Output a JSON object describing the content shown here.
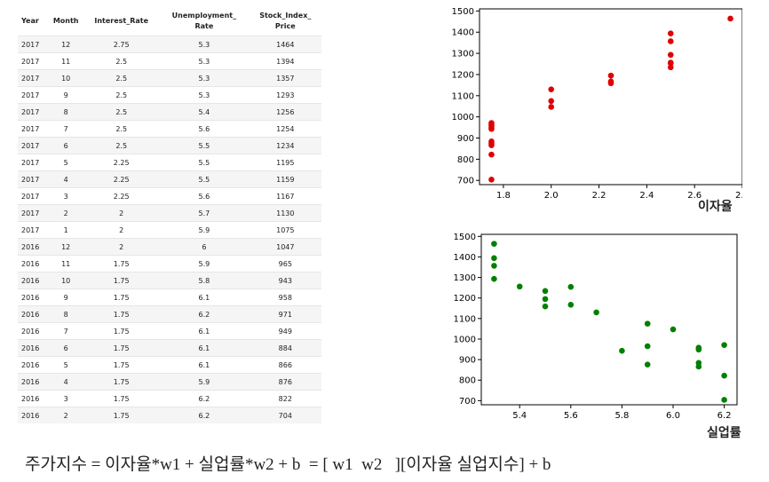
{
  "table": {
    "columns": [
      "Year",
      "Month",
      "Interest_Rate",
      "Unemployment_\nRate",
      "Stock_Index_\nPrice"
    ],
    "rows": [
      [
        "2017",
        "12",
        "2.75",
        "5.3",
        "1464"
      ],
      [
        "2017",
        "11",
        "2.5",
        "5.3",
        "1394"
      ],
      [
        "2017",
        "10",
        "2.5",
        "5.3",
        "1357"
      ],
      [
        "2017",
        "9",
        "2.5",
        "5.3",
        "1293"
      ],
      [
        "2017",
        "8",
        "2.5",
        "5.4",
        "1256"
      ],
      [
        "2017",
        "7",
        "2.5",
        "5.6",
        "1254"
      ],
      [
        "2017",
        "6",
        "2.5",
        "5.5",
        "1234"
      ],
      [
        "2017",
        "5",
        "2.25",
        "5.5",
        "1195"
      ],
      [
        "2017",
        "4",
        "2.25",
        "5.5",
        "1159"
      ],
      [
        "2017",
        "3",
        "2.25",
        "5.6",
        "1167"
      ],
      [
        "2017",
        "2",
        "2",
        "5.7",
        "1130"
      ],
      [
        "2017",
        "1",
        "2",
        "5.9",
        "1075"
      ],
      [
        "2016",
        "12",
        "2",
        "6",
        "1047"
      ],
      [
        "2016",
        "11",
        "1.75",
        "5.9",
        "965"
      ],
      [
        "2016",
        "10",
        "1.75",
        "5.8",
        "943"
      ],
      [
        "2016",
        "9",
        "1.75",
        "6.1",
        "958"
      ],
      [
        "2016",
        "8",
        "1.75",
        "6.2",
        "971"
      ],
      [
        "2016",
        "7",
        "1.75",
        "6.1",
        "949"
      ],
      [
        "2016",
        "6",
        "1.75",
        "6.1",
        "884"
      ],
      [
        "2016",
        "5",
        "1.75",
        "6.1",
        "866"
      ],
      [
        "2016",
        "4",
        "1.75",
        "5.9",
        "876"
      ],
      [
        "2016",
        "3",
        "1.75",
        "6.2",
        "822"
      ],
      [
        "2016",
        "2",
        "1.75",
        "6.2",
        "704"
      ]
    ]
  },
  "chart_data": [
    {
      "type": "scatter",
      "xlabel": "이자율",
      "ylabel": "",
      "color": "#e00000",
      "xlim": [
        1.7,
        2.8
      ],
      "ylim": [
        680,
        1510
      ],
      "xticks": [
        1.8,
        2.0,
        2.2,
        2.4,
        2.6,
        2.8
      ],
      "yticks": [
        700,
        800,
        900,
        1000,
        1100,
        1200,
        1300,
        1400,
        1500
      ],
      "x": [
        2.75,
        2.5,
        2.5,
        2.5,
        2.5,
        2.5,
        2.5,
        2.25,
        2.25,
        2.25,
        2,
        2,
        2,
        1.75,
        1.75,
        1.75,
        1.75,
        1.75,
        1.75,
        1.75,
        1.75,
        1.75,
        1.75
      ],
      "y": [
        1464,
        1394,
        1357,
        1293,
        1256,
        1254,
        1234,
        1195,
        1159,
        1167,
        1130,
        1075,
        1047,
        965,
        943,
        958,
        971,
        949,
        884,
        866,
        876,
        822,
        704
      ]
    },
    {
      "type": "scatter",
      "xlabel": "실업률",
      "ylabel": "",
      "color": "#008000",
      "xlim": [
        5.25,
        6.25
      ],
      "ylim": [
        680,
        1510
      ],
      "xticks": [
        5.4,
        5.6,
        5.8,
        6.0,
        6.2
      ],
      "yticks": [
        700,
        800,
        900,
        1000,
        1100,
        1200,
        1300,
        1400,
        1500
      ],
      "x": [
        5.3,
        5.3,
        5.3,
        5.3,
        5.4,
        5.6,
        5.5,
        5.5,
        5.5,
        5.6,
        5.7,
        5.9,
        6,
        5.9,
        5.8,
        6.1,
        6.2,
        6.1,
        6.1,
        6.1,
        5.9,
        6.2,
        6.2
      ],
      "y": [
        1464,
        1394,
        1357,
        1293,
        1256,
        1254,
        1234,
        1195,
        1159,
        1167,
        1130,
        1075,
        1047,
        965,
        943,
        958,
        971,
        949,
        884,
        866,
        876,
        822,
        704
      ]
    }
  ],
  "formula": "주가지수 = 이자율*w1 + 실업률*w2 + b  = [ w1  w2   ][이자율 실업지수] + b"
}
